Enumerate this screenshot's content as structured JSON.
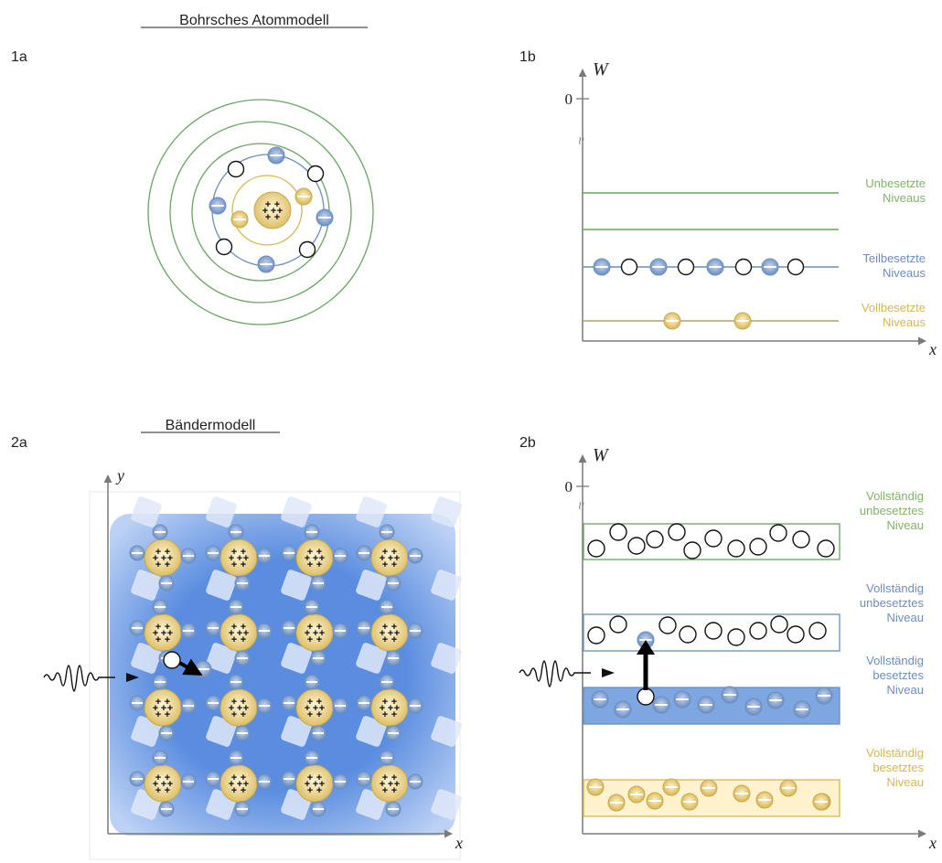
{
  "headings": {
    "bohr": "Bohrsches Atommodell",
    "baender": "Bändermodell"
  },
  "panel_labels": {
    "p1a": "1a",
    "p1b": "1b",
    "p2a": "2a",
    "p2b": "2b"
  },
  "axes": {
    "energy": "W",
    "position": "x",
    "y": "y",
    "zero": "0",
    "break": "≈"
  },
  "levels_1b": {
    "unbesetzt": [
      "Unbesetzte",
      "Niveaus"
    ],
    "teilbesetzt": [
      "Teilbesetzte",
      "Niveaus"
    ],
    "vollbesetzt": [
      "Vollbesetzte",
      "Niveaus"
    ]
  },
  "bands_2b": {
    "top": [
      "Vollständig",
      "unbesetztes",
      "Niveau"
    ],
    "upper": [
      "Vollständig",
      "unbesetztes",
      "Niveau"
    ],
    "middle": [
      "Vollständig",
      "besetztes",
      "Niveau"
    ],
    "bottom": [
      "Vollständig",
      "besetztes",
      "Niveau"
    ]
  },
  "symbols": {
    "plus": "+",
    "minus": "−"
  },
  "colors": {
    "green": "#6aa463",
    "blue": "#6c8ebf",
    "gold": "#d6b656",
    "gold_fill": "#fff2cc",
    "band_blue": "#7ea6e0",
    "lattice_blue": "#5a8de0",
    "axis": "#7a7a7a"
  }
}
